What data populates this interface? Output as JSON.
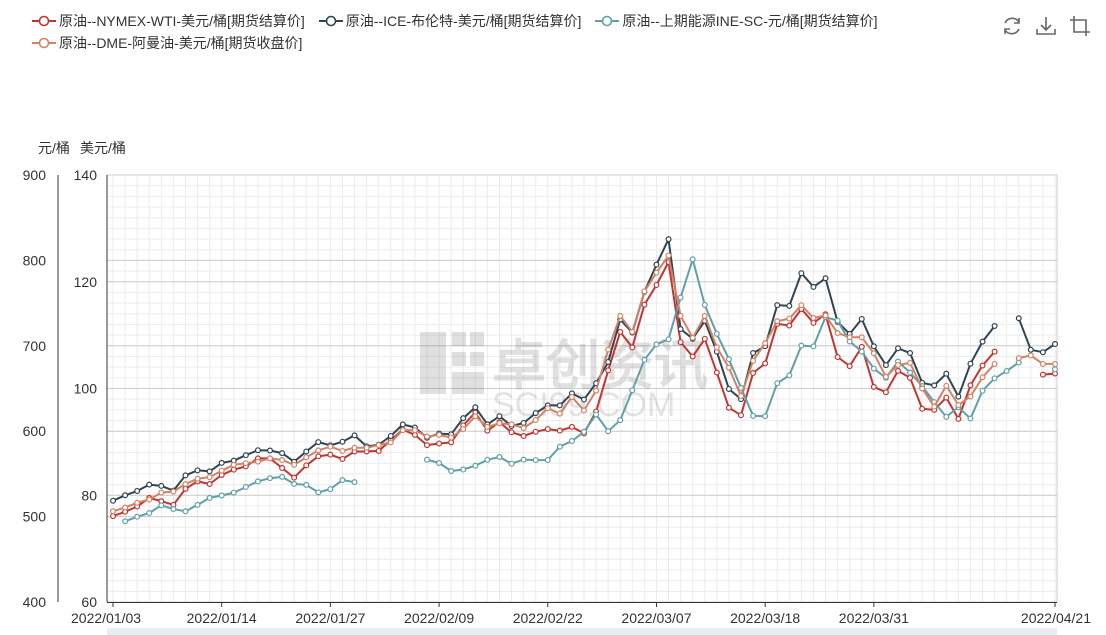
{
  "legend": [
    {
      "name": "原油--NYMEX-WTI-美元/桶[期货结算价]",
      "color": "#c23531"
    },
    {
      "name": "原油--ICE-布伦特-美元/桶[期货结算价]",
      "color": "#2f4554"
    },
    {
      "name": "原油--上期能源INE-SC-元/桶[期货结算价]",
      "color": "#61a0a8"
    },
    {
      "name": "原油--DME-阿曼油-美元/桶[期货收盘价]",
      "color": "#d48265"
    }
  ],
  "toolbox": {
    "refresh": "refresh-icon",
    "download": "download-icon",
    "crop": "crop-icon"
  },
  "watermark": {
    "text": "卓创资讯",
    "sub": "SCI99.COM"
  },
  "chart_data": {
    "type": "line",
    "yAxisLeft": {
      "unit": "元/桶",
      "min": 400,
      "max": 900,
      "ticks": [
        400,
        500,
        600,
        700,
        800,
        900
      ]
    },
    "yAxisRight": {
      "unit": "美元/桶",
      "min": 60,
      "max": 140,
      "ticks": [
        60,
        80,
        100,
        120,
        140
      ]
    },
    "xTicks": [
      "2022/01/03",
      "2022/01/14",
      "2022/01/27",
      "2022/02/09",
      "2022/02/22",
      "2022/03/07",
      "2022/03/18",
      "2022/03/31",
      "2022/04/21"
    ],
    "x": [
      "2022/01/03",
      "2022/01/04",
      "2022/01/05",
      "2022/01/06",
      "2022/01/07",
      "2022/01/10",
      "2022/01/11",
      "2022/01/12",
      "2022/01/13",
      "2022/01/14",
      "2022/01/17",
      "2022/01/18",
      "2022/01/19",
      "2022/01/20",
      "2022/01/21",
      "2022/01/24",
      "2022/01/25",
      "2022/01/26",
      "2022/01/27",
      "2022/01/28",
      "2022/01/31",
      "2022/02/01",
      "2022/02/02",
      "2022/02/03",
      "2022/02/04",
      "2022/02/07",
      "2022/02/08",
      "2022/02/09",
      "2022/02/10",
      "2022/02/11",
      "2022/02/14",
      "2022/02/15",
      "2022/02/16",
      "2022/02/17",
      "2022/02/18",
      "2022/02/21",
      "2022/02/22",
      "2022/02/23",
      "2022/02/24",
      "2022/02/25",
      "2022/02/28",
      "2022/03/01",
      "2022/03/02",
      "2022/03/03",
      "2022/03/04",
      "2022/03/07",
      "2022/03/08",
      "2022/03/09",
      "2022/03/10",
      "2022/03/11",
      "2022/03/14",
      "2022/03/15",
      "2022/03/16",
      "2022/03/17",
      "2022/03/18",
      "2022/03/21",
      "2022/03/22",
      "2022/03/23",
      "2022/03/24",
      "2022/03/25",
      "2022/03/28",
      "2022/03/29",
      "2022/03/30",
      "2022/03/31",
      "2022/04/01",
      "2022/04/04",
      "2022/04/05",
      "2022/04/06",
      "2022/04/07",
      "2022/04/08",
      "2022/04/11",
      "2022/04/12",
      "2022/04/13",
      "2022/04/14",
      "2022/04/15",
      "2022/04/18",
      "2022/04/19",
      "2022/04/20",
      "2022/04/21"
    ],
    "series": [
      {
        "name": "原油--NYMEX-WTI-美元/桶[期货结算价]",
        "axis": "right",
        "values": [
          76.1,
          76.9,
          77.9,
          79.5,
          78.9,
          78.2,
          81.2,
          82.6,
          82.1,
          83.8,
          84.8,
          85.4,
          86.9,
          86.9,
          85.1,
          83.3,
          85.6,
          87.3,
          87.6,
          86.8,
          88.2,
          88.2,
          88.3,
          90.3,
          92.3,
          91.3,
          89.4,
          89.7,
          89.9,
          93.1,
          95.5,
          92.1,
          93.7,
          91.8,
          91.1,
          91.9,
          92.4,
          92.1,
          92.8,
          91.6,
          95.7,
          103.4,
          110.6,
          107.7,
          115.7,
          119.4,
          123.7,
          108.7,
          106.0,
          109.3,
          103.0,
          96.4,
          95.0,
          102.9,
          104.7,
          112.1,
          111.8,
          114.9,
          112.3,
          113.9,
          105.9,
          104.2,
          107.8,
          100.3,
          99.3,
          103.3,
          102.0,
          96.2,
          96.0,
          98.3,
          94.3,
          100.6,
          104.3,
          106.9,
          null,
          null,
          null,
          102.6,
          102.8
        ]
      },
      {
        "name": "原油--ICE-布伦特-美元/桶[期货结算价]",
        "axis": "right",
        "values": [
          78.98,
          80.0,
          80.8,
          81.99,
          81.75,
          80.87,
          83.72,
          84.67,
          84.47,
          86.06,
          86.48,
          87.51,
          88.44,
          88.38,
          87.89,
          86.27,
          88.2,
          89.96,
          89.34,
          90.03,
          91.21,
          89.16,
          89.47,
          91.11,
          93.27,
          92.69,
          90.78,
          91.55,
          91.41,
          94.44,
          96.48,
          93.28,
          94.81,
          92.97,
          93.54,
          95.39,
          96.84,
          96.84,
          99.08,
          97.93,
          100.99,
          104.97,
          112.93,
          110.46,
          118.11,
          123.21,
          127.98,
          111.14,
          109.33,
          112.67,
          106.9,
          99.91,
          98.02,
          106.64,
          107.93,
          115.62,
          115.48,
          121.6,
          119.03,
          120.65,
          112.48,
          110.23,
          113.03,
          107.91,
          104.39,
          107.53,
          106.64,
          101.07,
          100.58,
          102.78,
          98.48,
          104.64,
          108.78,
          111.7,
          null,
          113.16,
          107.25,
          106.8,
          108.33
        ]
      },
      {
        "name": "原油--上期能源INE-SC-元/桶[期货结算价]",
        "axis": "left",
        "values": [
          null,
          494.5,
          499.8,
          504.2,
          513.1,
          508.9,
          506.2,
          513.7,
          521.9,
          524.7,
          528.1,
          534.6,
          541.2,
          545.0,
          546.5,
          538.3,
          537.1,
          528.4,
          532.2,
          542.8,
          540.3,
          null,
          null,
          null,
          null,
          null,
          566.7,
          562.8,
          553.4,
          555.1,
          559.6,
          566.5,
          569.8,
          561.9,
          566.7,
          566.2,
          566.3,
          581.9,
          588.5,
          599.3,
          619.6,
          600.0,
          612.9,
          648.0,
          683.6,
          701.6,
          707.7,
          756.5,
          801.3,
          747.8,
          714.0,
          684.4,
          650.7,
          618.0,
          617.6,
          656.2,
          665.3,
          700.2,
          699.3,
          733.7,
          729.4,
          705.1,
          693.2,
          673.3,
          662.4,
          681.6,
          668.7,
          652.8,
          634.1,
          616.8,
          628.2,
          614.8,
          647.4,
          661.9,
          670.5,
          680.4,
          null,
          null,
          672.5
        ]
      },
      {
        "name": "原油--DME-阿曼油-美元/桶[期货收盘价]",
        "axis": "right",
        "values": [
          77.0,
          77.7,
          78.6,
          79.2,
          80.5,
          80.7,
          82.1,
          83.1,
          83.4,
          84.6,
          85.7,
          86.0,
          86.3,
          86.9,
          86.6,
          85.7,
          87.1,
          88.4,
          89.1,
          88.3,
          88.9,
          88.9,
          89.4,
          89.9,
          92.2,
          92.2,
          91.0,
          91.3,
          90.8,
          92.4,
          94.8,
          92.8,
          93.5,
          93.3,
          92.6,
          94.1,
          96.3,
          95.3,
          98.4,
          95.9,
          99.6,
          107.3,
          113.6,
          110.6,
          118.2,
          121.7,
          124.9,
          113.6,
          109.5,
          113.6,
          107.7,
          103.9,
          98.6,
          105.2,
          108.5,
          112.6,
          113.1,
          115.6,
          113.2,
          113.7,
          110.4,
          109.6,
          109.6,
          106.6,
          102.2,
          104.4,
          104.8,
          100.0,
          96.6,
          100.5,
          96.9,
          98.5,
          102.1,
          104.6,
          null,
          105.7,
          106.2,
          104.6,
          104.6
        ]
      }
    ]
  }
}
